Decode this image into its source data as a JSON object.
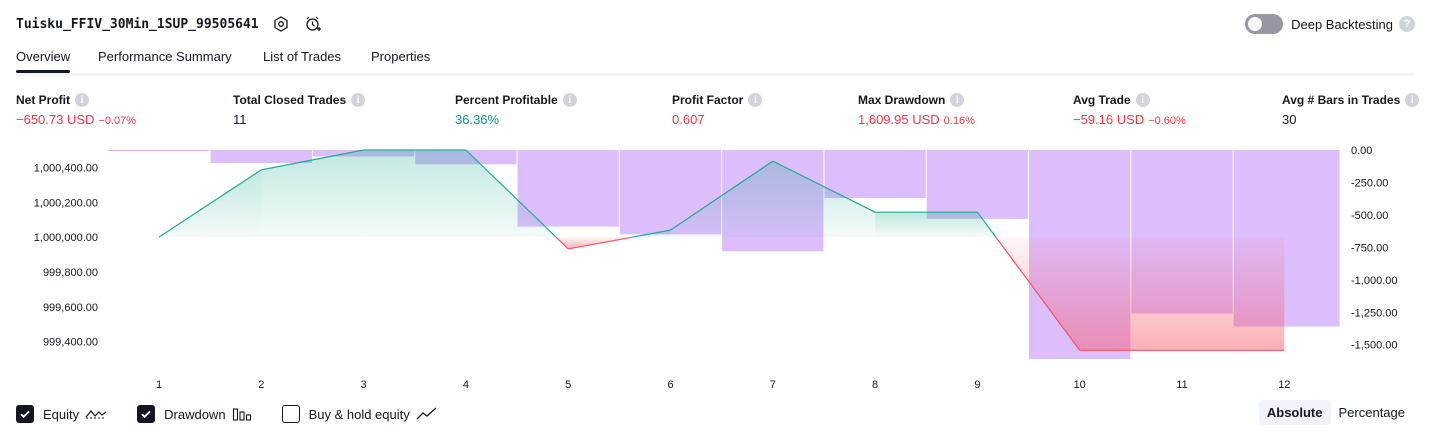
{
  "header": {
    "strategy_name": "Tuisku_FFIV_30Min_1SUP_99505641",
    "settings_icon": "gear-hex-icon",
    "add_alert_icon": "alarm-add-icon",
    "deep_backtesting_label": "Deep Backtesting",
    "deep_backtesting_enabled": false,
    "help_icon": "question-icon"
  },
  "tabs": [
    {
      "label": "Overview",
      "active": true
    },
    {
      "label": "Performance Summary",
      "active": false
    },
    {
      "label": "List of Trades",
      "active": false
    },
    {
      "label": "Properties",
      "active": false
    }
  ],
  "stats": {
    "net_profit": {
      "label": "Net Profit",
      "value": "−650.73 USD",
      "pct": "−0.07%"
    },
    "total_closed_trades": {
      "label": "Total Closed Trades",
      "value": "11"
    },
    "percent_profitable": {
      "label": "Percent Profitable",
      "value": "36.36%"
    },
    "profit_factor": {
      "label": "Profit Factor",
      "value": "0.607"
    },
    "max_drawdown": {
      "label": "Max Drawdown",
      "value": "1,609.95 USD",
      "pct": "0.16%"
    },
    "avg_trade": {
      "label": "Avg Trade",
      "value": "−59.16 USD",
      "pct": "−0.60%"
    },
    "avg_bars": {
      "label": "Avg # Bars in Trades",
      "value": "30"
    }
  },
  "colors": {
    "positive": "#089981",
    "negative": "#f23645",
    "equity_line_up": "#22ab94",
    "equity_line_down": "#f7525f",
    "drawdown_bar": "#d1a8fb",
    "text": "#131722"
  },
  "chart_data": {
    "type": "line",
    "x": [
      1,
      2,
      3,
      4,
      5,
      6,
      7,
      8,
      9,
      10,
      11,
      12
    ],
    "series": [
      {
        "name": "Equity",
        "axis": "left",
        "values": [
          1000000.0,
          1000386.0,
          1000500.0,
          1000500.0,
          999932.0,
          1000040.0,
          1000436.0,
          1000143.0,
          1000143.0,
          999350.0,
          999350.0,
          999350.0
        ]
      },
      {
        "name": "Drawdown",
        "axis": "right",
        "type": "bar",
        "values": [
          0.0,
          -100.0,
          -50.0,
          -110.0,
          -590.0,
          -650.0,
          -780.0,
          -370.0,
          -530.0,
          -1610.0,
          -1260.0,
          -1360.0
        ]
      }
    ],
    "left_axis": {
      "ticks": [
        "999,400.00",
        "999,600.00",
        "999,800.00",
        "1,000,000.00",
        "1,000,200.00",
        "1,000,400.00"
      ],
      "range": [
        999300,
        1000500
      ]
    },
    "right_axis": {
      "ticks": [
        "0.00",
        "-250.00",
        "-500.00",
        "-750.00",
        "-1,000.00",
        "-1,250.00",
        "-1,500.00"
      ],
      "range": [
        -1610,
        0
      ]
    },
    "baseline": 1000000.0,
    "grid": false,
    "legend": "bottom-left"
  },
  "footer": {
    "equity": {
      "label": "Equity",
      "checked": true
    },
    "drawdown": {
      "label": "Drawdown",
      "checked": true
    },
    "buy_hold": {
      "label": "Buy & hold equity",
      "checked": false
    },
    "scale_absolute": "Absolute",
    "scale_percentage": "Percentage",
    "scale_selected": "Absolute"
  }
}
